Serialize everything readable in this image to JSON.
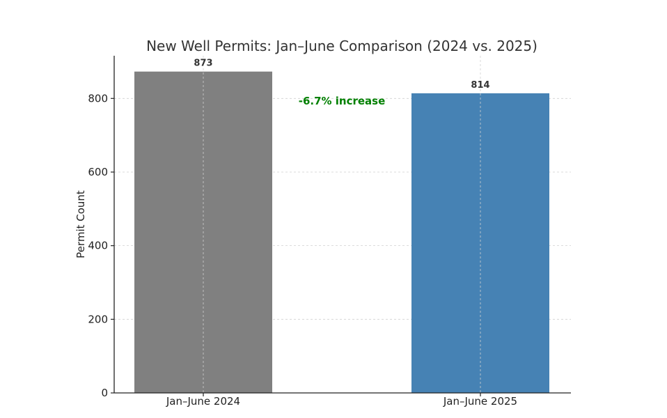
{
  "chart_data": {
    "type": "bar",
    "title": "New Well Permits: Jan–June Comparison (2024 vs. 2025)",
    "xlabel": "",
    "ylabel": "Permit Count",
    "categories": [
      "Jan–June 2024",
      "Jan–June 2025"
    ],
    "values": [
      873,
      814
    ],
    "value_labels": [
      "873",
      "814"
    ],
    "bar_colors": [
      "#808080",
      "#4682b4"
    ],
    "ylim": [
      0,
      916
    ],
    "yticks": [
      0,
      200,
      400,
      600,
      800
    ],
    "ytick_labels": [
      "0",
      "200",
      "400",
      "600",
      "800"
    ],
    "grid": true,
    "annotation": {
      "text": "-6.7% increase",
      "color": "#008000"
    }
  }
}
